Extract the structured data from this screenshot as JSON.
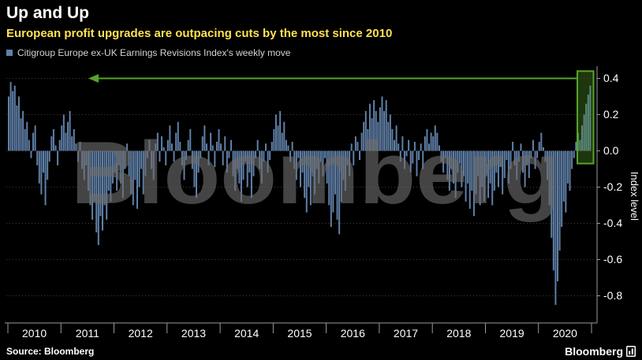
{
  "header": {
    "title": "Up and Up",
    "subtitle": "European profit upgrades are outpacing cuts by the most since 2010",
    "legend": {
      "label": "Citigroup Europe ex-UK Earnings Revisions Index's weekly move",
      "swatch_color": "#6080a8"
    }
  },
  "watermark": "Bloomberg",
  "footer": {
    "source": "Source: Bloomberg",
    "brand": "Bloomberg"
  },
  "colors": {
    "background": "#000000",
    "bar": "#6080a8",
    "accent_green": "#57a32c",
    "subtitle": "#ffe24d",
    "grid": "#3d3d3d",
    "axis": "#9a9a9a",
    "text": "#ffffff",
    "watermark": "#6e6e6e"
  },
  "chart_data": {
    "type": "bar",
    "title": "Up and Up",
    "subtitle": "European profit upgrades are outpacing cuts by the most since 2010",
    "series_name": "Citigroup Europe ex-UK Earnings Revisions Index's weekly move",
    "xlabel": "",
    "ylabel": "Index level",
    "ylim": [
      -0.95,
      0.45
    ],
    "y_ticks": [
      0.4,
      0.2,
      0.0,
      -0.2,
      -0.4,
      -0.6,
      -0.8
    ],
    "grid": "dotted-horizontal",
    "legend_position": "top-left",
    "x_years": [
      2010,
      2011,
      2012,
      2013,
      2014,
      2015,
      2016,
      2017,
      2018,
      2019,
      2020
    ],
    "points_per_year": 26,
    "annotations": {
      "arrow_value": 0.4,
      "arrow_direction": "left",
      "box_last_n": 6,
      "box_top_value": 0.44,
      "box_bottom_value": -0.07
    },
    "values": [
      0.3,
      0.38,
      0.33,
      0.36,
      0.25,
      0.3,
      0.18,
      0.22,
      0.12,
      0.16,
      0.06,
      -0.04,
      0.1,
      0.14,
      -0.08,
      -0.18,
      -0.24,
      -0.12,
      -0.3,
      -0.16,
      -0.06,
      0.08,
      0.12,
      0.03,
      -0.08,
      0.06,
      0.14,
      0.2,
      0.1,
      0.16,
      0.22,
      0.08,
      0.12,
      0.04,
      -0.06,
      0.05,
      -0.1,
      -0.16,
      -0.08,
      -0.22,
      -0.3,
      -0.38,
      -0.28,
      -0.45,
      -0.52,
      -0.36,
      -0.44,
      -0.3,
      -0.38,
      -0.22,
      -0.28,
      -0.18,
      -0.12,
      -0.22,
      -0.08,
      -0.18,
      -0.26,
      -0.1,
      0.04,
      -0.14,
      -0.24,
      -0.3,
      -0.16,
      -0.32,
      -0.2,
      -0.1,
      -0.24,
      -0.14,
      -0.04,
      0.06,
      -0.1,
      -0.16,
      0.04,
      0.1,
      -0.06,
      0.08,
      0.02,
      -0.08,
      0.06,
      0.14,
      0.04,
      -0.06,
      0.1,
      0.16,
      0.05,
      -0.08,
      -0.16,
      -0.05,
      0.06,
      0.12,
      -0.1,
      -0.2,
      -0.26,
      -0.12,
      -0.04,
      0.08,
      0.14,
      0.04,
      -0.08,
      0.1,
      0.03,
      -0.09,
      0.05,
      0.12,
      0.04,
      -0.08,
      0.08,
      -0.12,
      -0.04,
      0.06,
      -0.14,
      -0.22,
      -0.1,
      -0.18,
      -0.28,
      -0.16,
      -0.06,
      -0.2,
      -0.12,
      -0.26,
      -0.14,
      -0.04,
      0.06,
      -0.1,
      -0.18,
      -0.06,
      0.04,
      -0.12,
      -0.05,
      0.05,
      0.12,
      0.2,
      0.14,
      0.22,
      0.1,
      0.16,
      0.06,
      0.03,
      -0.06,
      0.05,
      -0.1,
      -0.16,
      -0.04,
      -0.2,
      -0.12,
      -0.26,
      -0.34,
      -0.2,
      -0.3,
      -0.14,
      -0.24,
      -0.1,
      -0.18,
      -0.06,
      -0.14,
      -0.04,
      -0.18,
      -0.3,
      -0.42,
      -0.34,
      -0.24,
      -0.38,
      -0.46,
      -0.28,
      -0.16,
      -0.22,
      -0.08,
      -0.14,
      0.04,
      -0.08,
      0.08,
      0.05,
      -0.05,
      0.1,
      0.16,
      0.22,
      0.12,
      0.26,
      0.18,
      0.28,
      0.22,
      0.16,
      0.24,
      0.3,
      0.22,
      0.28,
      0.16,
      0.2,
      0.12,
      0.06,
      0.14,
      0.04,
      -0.06,
      0.08,
      -0.1,
      -0.03,
      0.06,
      -0.12,
      -0.07,
      0.05,
      -0.14,
      -0.05,
      0.04,
      -0.1,
      0.08,
      0.12,
      0.04,
      0.1,
      0.08,
      0.14,
      0.1,
      0.03,
      -0.06,
      -0.12,
      -0.04,
      -0.16,
      -0.22,
      -0.1,
      -0.18,
      -0.26,
      -0.12,
      -0.07,
      -0.2,
      -0.14,
      -0.28,
      -0.18,
      -0.32,
      -0.22,
      -0.36,
      -0.24,
      -0.14,
      -0.3,
      -0.2,
      -0.28,
      -0.14,
      -0.26,
      -0.18,
      -0.3,
      -0.22,
      -0.12,
      -0.2,
      -0.09,
      -0.24,
      -0.15,
      -0.05,
      -0.18,
      -0.1,
      0.05,
      -0.08,
      -0.16,
      -0.06,
      0.04,
      -0.12,
      -0.2,
      -0.08,
      -0.15,
      -0.04,
      0.06,
      -0.1,
      -0.04,
      0.05,
      0.1,
      0.02,
      -0.06,
      -0.16,
      -0.3,
      -0.48,
      -0.66,
      -0.85,
      -0.72,
      -0.55,
      -0.42,
      -0.28,
      -0.34,
      -0.18,
      -0.22,
      -0.1,
      -0.04,
      0.05,
      0.1,
      0.06,
      0.14,
      0.2,
      0.26,
      0.31,
      0.36
    ]
  }
}
